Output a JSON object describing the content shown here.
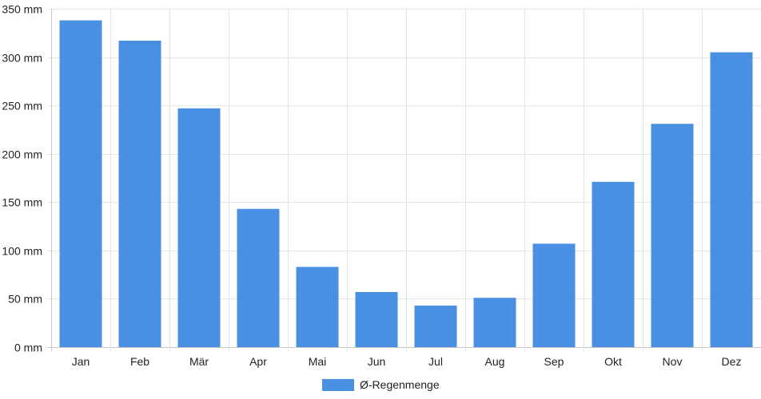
{
  "chart_data": {
    "type": "bar",
    "categories": [
      "Jan",
      "Feb",
      "Mär",
      "Apr",
      "Mai",
      "Jun",
      "Jul",
      "Aug",
      "Sep",
      "Okt",
      "Nov",
      "Dez"
    ],
    "series": [
      {
        "name": "Ø-Regenmenge",
        "values": [
          338,
          317,
          247,
          143,
          83,
          57,
          43,
          51,
          107,
          171,
          231,
          305
        ],
        "color": "#4a90e2"
      }
    ],
    "y_ticks": [
      "0 mm",
      "50 mm",
      "100 mm",
      "150 mm",
      "200 mm",
      "250 mm",
      "300 mm",
      "350 mm"
    ],
    "ylim": [
      0,
      350
    ],
    "grid": true,
    "legend_position": "bottom"
  }
}
